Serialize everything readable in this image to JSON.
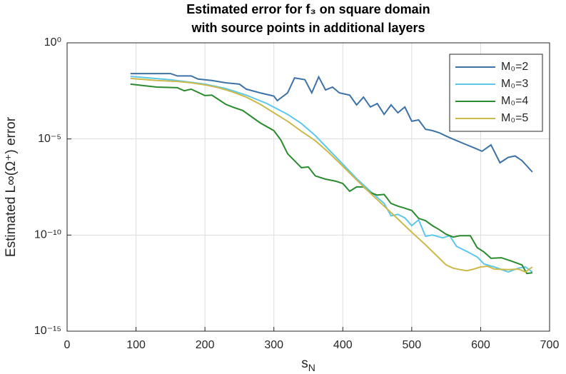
{
  "chart_data": {
    "type": "line",
    "title": [
      "Estimated error for f₃ on square domain",
      "with source points in additional layers"
    ],
    "xlabel": "s",
    "xlabel_sub": "N",
    "ylabel": "Estimated L∞(Ω⁺) error",
    "xlim": [
      0,
      700
    ],
    "xticks": [
      0,
      100,
      200,
      300,
      400,
      500,
      600,
      700
    ],
    "ylim": [
      1e-15,
      1
    ],
    "yticks": [
      {
        "value": 1,
        "label": "10⁰"
      },
      {
        "value": 1e-05,
        "label": "10⁻⁵"
      },
      {
        "value": 1e-10,
        "label": "10⁻¹⁰"
      },
      {
        "value": 1e-15,
        "label": "10⁻¹⁵"
      }
    ],
    "yscale": "log",
    "grid": true,
    "legend": "upper right",
    "series": [
      {
        "name": "M₀=2",
        "color": "#3d72a6",
        "x": [
          92,
          150,
          160,
          180,
          190,
          210,
          230,
          250,
          260,
          280,
          300,
          305,
          320,
          330,
          345,
          355,
          365,
          375,
          385,
          395,
          410,
          420,
          430,
          440,
          450,
          460,
          470,
          480,
          490,
          500,
          510,
          520,
          530,
          540,
          550,
          560,
          575,
          590,
          602,
          615,
          628,
          640,
          650,
          660,
          675
        ],
        "values": [
          0.025,
          0.025,
          0.019,
          0.019,
          0.013,
          0.011,
          0.0083,
          0.0071,
          0.0039,
          0.0025,
          0.0017,
          0.00098,
          0.0025,
          0.015,
          0.012,
          0.0025,
          0.017,
          0.0035,
          0.005,
          0.0025,
          0.0019,
          0.00059,
          0.0015,
          0.00046,
          0.00069,
          0.00019,
          0.00059,
          0.00023,
          0.00046,
          8.3e-05,
          9.8e-05,
          3.2e-05,
          2.7e-05,
          2.1e-05,
          1.4e-05,
          9.8e-06,
          5.8e-06,
          3.5e-06,
          2.3e-06,
          4.9e-06,
          5.8e-07,
          1.1e-06,
          1.3e-06,
          7.4e-07,
          1.9e-07
        ]
      },
      {
        "name": "M₀=3",
        "color": "#5cc8ea",
        "x": [
          92,
          150,
          200,
          230,
          260,
          290,
          320,
          340,
          360,
          380,
          400,
          420,
          440,
          460,
          470,
          480,
          490,
          500,
          510,
          520,
          530,
          545,
          555,
          565,
          580,
          595,
          605,
          620,
          640,
          655,
          665,
          675
        ],
        "values": [
          0.018,
          0.012,
          0.0071,
          0.0042,
          0.0019,
          0.00069,
          0.00019,
          6.3e-05,
          1.5e-05,
          2.7e-06,
          4.9e-07,
          8.7e-08,
          1.9e-08,
          4.4e-09,
          1e-09,
          1.2e-09,
          7.9e-10,
          3.1e-10,
          6.2e-10,
          8.7e-11,
          1e-10,
          7.2e-11,
          9.3e-11,
          2.6e-11,
          1.4e-11,
          7.2e-12,
          3.1e-12,
          2.2e-12,
          1.2e-12,
          1.9e-12,
          2.2e-12,
          1.2e-12
        ]
      },
      {
        "name": "M₀=4",
        "color": "#2a8a2e",
        "x": [
          92,
          130,
          160,
          170,
          180,
          200,
          210,
          230,
          240,
          255,
          280,
          300,
          310,
          320,
          340,
          350,
          360,
          375,
          390,
          400,
          410,
          420,
          430,
          440,
          450,
          460,
          470,
          480,
          490,
          500,
          510,
          520,
          530,
          540,
          550,
          560,
          570,
          585,
          595,
          605,
          615,
          630,
          645,
          660,
          667,
          675
        ],
        "values": [
          0.0071,
          0.005,
          0.0046,
          0.0032,
          0.0039,
          0.0018,
          0.0019,
          0.00064,
          0.00046,
          0.0003,
          6.9e-05,
          2.7e-05,
          8.9e-06,
          1.7e-06,
          3.2e-07,
          3.5e-07,
          1.2e-07,
          8.1e-08,
          6.3e-08,
          4.8e-08,
          1.9e-08,
          3.2e-08,
          3.2e-08,
          1.6e-08,
          1.2e-08,
          1.3e-08,
          4.4e-09,
          3.2e-09,
          2.5e-09,
          1.9e-09,
          7.4e-10,
          5.6e-10,
          3.1e-10,
          1.9e-10,
          1.1e-10,
          7.9e-11,
          9.3e-11,
          9.3e-11,
          2.2e-11,
          1.3e-11,
          6.2e-12,
          6.6e-12,
          4.4e-12,
          2.8e-12,
          1e-12,
          1.1e-12
        ]
      },
      {
        "name": "M₀=5",
        "color": "#cbb94a",
        "x": [
          92,
          130,
          160,
          180,
          200,
          220,
          240,
          260,
          280,
          300,
          320,
          340,
          360,
          380,
          400,
          420,
          440,
          460,
          480,
          500,
          520,
          540,
          550,
          560,
          570,
          580,
          590,
          600,
          610,
          620,
          640,
          655,
          665,
          675
        ],
        "values": [
          0.014,
          0.011,
          0.0098,
          0.0083,
          0.0065,
          0.0046,
          0.0028,
          0.0015,
          0.00064,
          0.00023,
          8.3e-05,
          2.5e-05,
          8.1e-06,
          1.9e-06,
          3.8e-07,
          7.4e-08,
          1.5e-08,
          3.2e-09,
          6.8e-10,
          1.4e-10,
          3.1e-11,
          6.2e-12,
          2.8e-12,
          1.9e-12,
          1.6e-12,
          1.4e-12,
          1.7e-12,
          2.2e-12,
          2.4e-12,
          1.7e-12,
          1.6e-12,
          1.7e-12,
          1.2e-12,
          2.2e-12
        ]
      }
    ]
  }
}
